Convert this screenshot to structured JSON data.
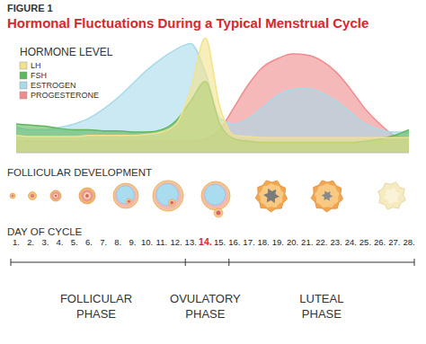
{
  "chart_data": {
    "type": "area",
    "title": "Hormonal Fluctuations During a Typical Menstrual Cycle",
    "annotations": [
      "FIGURE 1",
      "FOLLICULAR DEVELOPMENT"
    ],
    "ylabel": "HORMONE LEVEL",
    "xlabel": "DAY OF CYCLE",
    "categories": [
      "1.",
      "2.",
      "3.",
      "4.",
      "5.",
      "6.",
      "7.",
      "8.",
      "9.",
      "10.",
      "11.",
      "12.",
      "13.",
      "14.",
      "15.",
      "16.",
      "17.",
      "18.",
      "19.",
      "20.",
      "21.",
      "22.",
      "23.",
      "24.",
      "25.",
      "26.",
      "27.",
      "28."
    ],
    "series": [
      {
        "name": "LH",
        "color": "#f3e28c",
        "values": [
          15,
          14,
          14,
          14,
          14,
          15,
          15,
          15,
          15,
          16,
          18,
          25,
          55,
          100,
          40,
          15,
          14,
          13,
          13,
          13,
          13,
          13,
          13,
          13,
          13,
          13,
          13,
          13
        ]
      },
      {
        "name": "FSH",
        "color": "#5db85a",
        "values": [
          25,
          24,
          23,
          21,
          20,
          20,
          19,
          19,
          18,
          18,
          20,
          28,
          45,
          62,
          25,
          12,
          10,
          9,
          9,
          9,
          9,
          9,
          9,
          9,
          10,
          12,
          15,
          20
        ]
      },
      {
        "name": "ESTROGEN",
        "color": "#a8dbe9",
        "values": [
          22,
          20,
          20,
          22,
          25,
          30,
          38,
          48,
          60,
          72,
          82,
          90,
          95,
          70,
          30,
          25,
          30,
          40,
          50,
          55,
          56,
          52,
          45,
          35,
          25,
          20,
          18,
          18
        ]
      },
      {
        "name": "PROGESTERONE",
        "color": "#f08a8c",
        "values": [
          10,
          10,
          10,
          10,
          10,
          10,
          10,
          10,
          10,
          10,
          10,
          10,
          10,
          12,
          20,
          40,
          60,
          75,
          82,
          86,
          85,
          80,
          70,
          55,
          38,
          25,
          15,
          12
        ]
      }
    ],
    "phases": [
      {
        "name": "FOLLICULAR PHASE",
        "start": "1.",
        "end": "12."
      },
      {
        "name": "OVULATORY PHASE",
        "start": "13.",
        "end": "15."
      },
      {
        "name": "LUTEAL PHASE",
        "start": "16.",
        "end": "28."
      }
    ],
    "ylim": [
      0,
      100
    ],
    "grid": false,
    "legend": "top-left",
    "tick_labels": "x"
  }
}
